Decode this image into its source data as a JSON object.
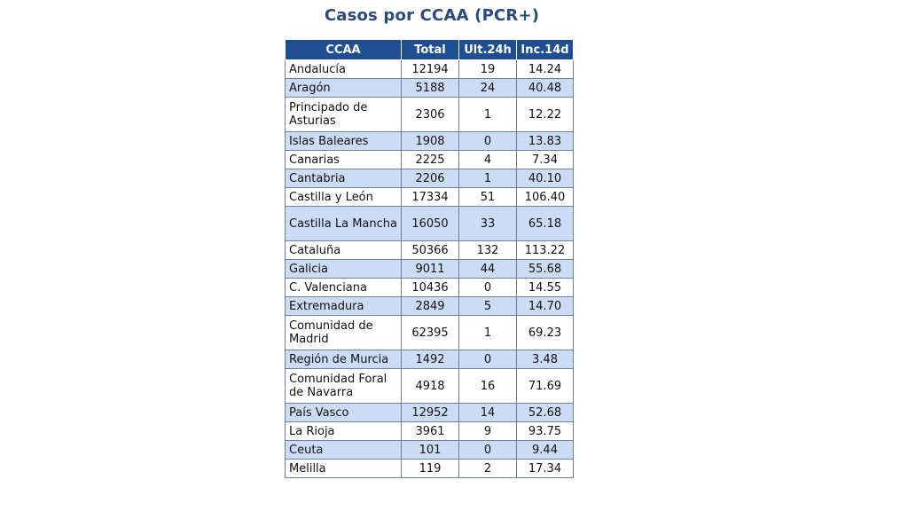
{
  "title": "Casos por CCAA (PCR+)",
  "table": {
    "headers": [
      "CCAA",
      "Total",
      "Ult.24h",
      "Inc.14d"
    ],
    "rows": [
      {
        "name": "Andalucía",
        "total": "12194",
        "ult24h": "19",
        "inc14d": "14.24"
      },
      {
        "name": "Aragón",
        "total": "5188",
        "ult24h": "24",
        "inc14d": "40.48"
      },
      {
        "name": "Principado de Asturias",
        "total": "2306",
        "ult24h": "1",
        "inc14d": "12.22"
      },
      {
        "name": "Islas Baleares",
        "total": "1908",
        "ult24h": "0",
        "inc14d": "13.83"
      },
      {
        "name": "Canarias",
        "total": "2225",
        "ult24h": "4",
        "inc14d": "7.34"
      },
      {
        "name": "Cantabria",
        "total": "2206",
        "ult24h": "1",
        "inc14d": "40.10"
      },
      {
        "name": "Castilla y León",
        "total": "17334",
        "ult24h": "51",
        "inc14d": "106.40"
      },
      {
        "name": "Castilla La Mancha",
        "total": "16050",
        "ult24h": "33",
        "inc14d": "65.18"
      },
      {
        "name": "Cataluña",
        "total": "50366",
        "ult24h": "132",
        "inc14d": "113.22"
      },
      {
        "name": "Galicia",
        "total": "9011",
        "ult24h": "44",
        "inc14d": "55.68"
      },
      {
        "name": "C. Valenciana",
        "total": "10436",
        "ult24h": "0",
        "inc14d": "14.55"
      },
      {
        "name": "Extremadura",
        "total": "2849",
        "ult24h": "5",
        "inc14d": "14.70"
      },
      {
        "name": "Comunidad de Madrid",
        "total": "62395",
        "ult24h": "1",
        "inc14d": "69.23"
      },
      {
        "name": "Región de Murcia",
        "total": "1492",
        "ult24h": "0",
        "inc14d": "3.48"
      },
      {
        "name": "Comunidad Foral de Navarra",
        "total": "4918",
        "ult24h": "16",
        "inc14d": "71.69"
      },
      {
        "name": "País Vasco",
        "total": "12952",
        "ult24h": "14",
        "inc14d": "52.68"
      },
      {
        "name": "La Rioja",
        "total": "3961",
        "ult24h": "9",
        "inc14d": "93.75"
      },
      {
        "name": "Ceuta",
        "total": "101",
        "ult24h": "0",
        "inc14d": "9.44"
      },
      {
        "name": "Melilla",
        "total": "119",
        "ult24h": "2",
        "inc14d": "17.34"
      }
    ]
  },
  "colors": {
    "header_bg": "#1f4f92",
    "title": "#2b4a7e",
    "alt_row": "#ccdcf6"
  }
}
